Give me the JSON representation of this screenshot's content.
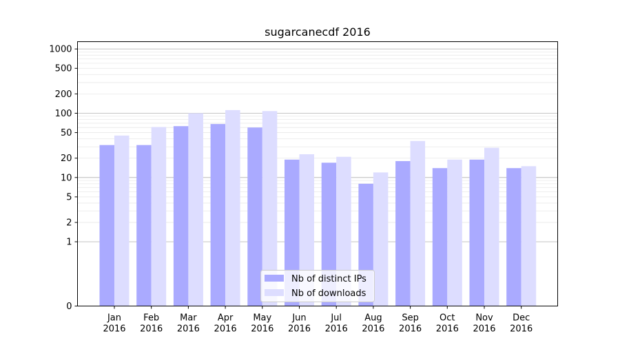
{
  "chart_data": {
    "type": "bar",
    "title": "sugarcanecdf 2016",
    "xlabel": "",
    "ylabel": "",
    "y_scale": "symlog",
    "ylim": [
      0,
      1300
    ],
    "y_ticks": [
      {
        "value": 0,
        "label": "0"
      },
      {
        "value": 1,
        "label": "1"
      },
      {
        "value": 2,
        "label": "2"
      },
      {
        "value": 5,
        "label": "5"
      },
      {
        "value": 10,
        "label": "10"
      },
      {
        "value": 20,
        "label": "20"
      },
      {
        "value": 50,
        "label": "50"
      },
      {
        "value": 100,
        "label": "100"
      },
      {
        "value": 200,
        "label": "200"
      },
      {
        "value": 500,
        "label": "500"
      },
      {
        "value": 1000,
        "label": "1000"
      }
    ],
    "categories": [
      {
        "month": "Jan",
        "year": "2016"
      },
      {
        "month": "Feb",
        "year": "2016"
      },
      {
        "month": "Mar",
        "year": "2016"
      },
      {
        "month": "Apr",
        "year": "2016"
      },
      {
        "month": "May",
        "year": "2016"
      },
      {
        "month": "Jun",
        "year": "2016"
      },
      {
        "month": "Jul",
        "year": "2016"
      },
      {
        "month": "Aug",
        "year": "2016"
      },
      {
        "month": "Sep",
        "year": "2016"
      },
      {
        "month": "Oct",
        "year": "2016"
      },
      {
        "month": "Nov",
        "year": "2016"
      },
      {
        "month": "Dec",
        "year": "2016"
      }
    ],
    "series": [
      {
        "name": "Nb of distinct IPs",
        "color": "#aaaaff",
        "values": [
          32,
          32,
          63,
          68,
          60,
          19,
          17,
          8,
          18,
          14,
          19,
          14
        ]
      },
      {
        "name": "Nb of downloads",
        "color": "#ddddff",
        "values": [
          45,
          61,
          100,
          112,
          108,
          23,
          21,
          12,
          37,
          19,
          29,
          15
        ]
      }
    ],
    "grid": true,
    "legend_position": "bottom-center"
  }
}
